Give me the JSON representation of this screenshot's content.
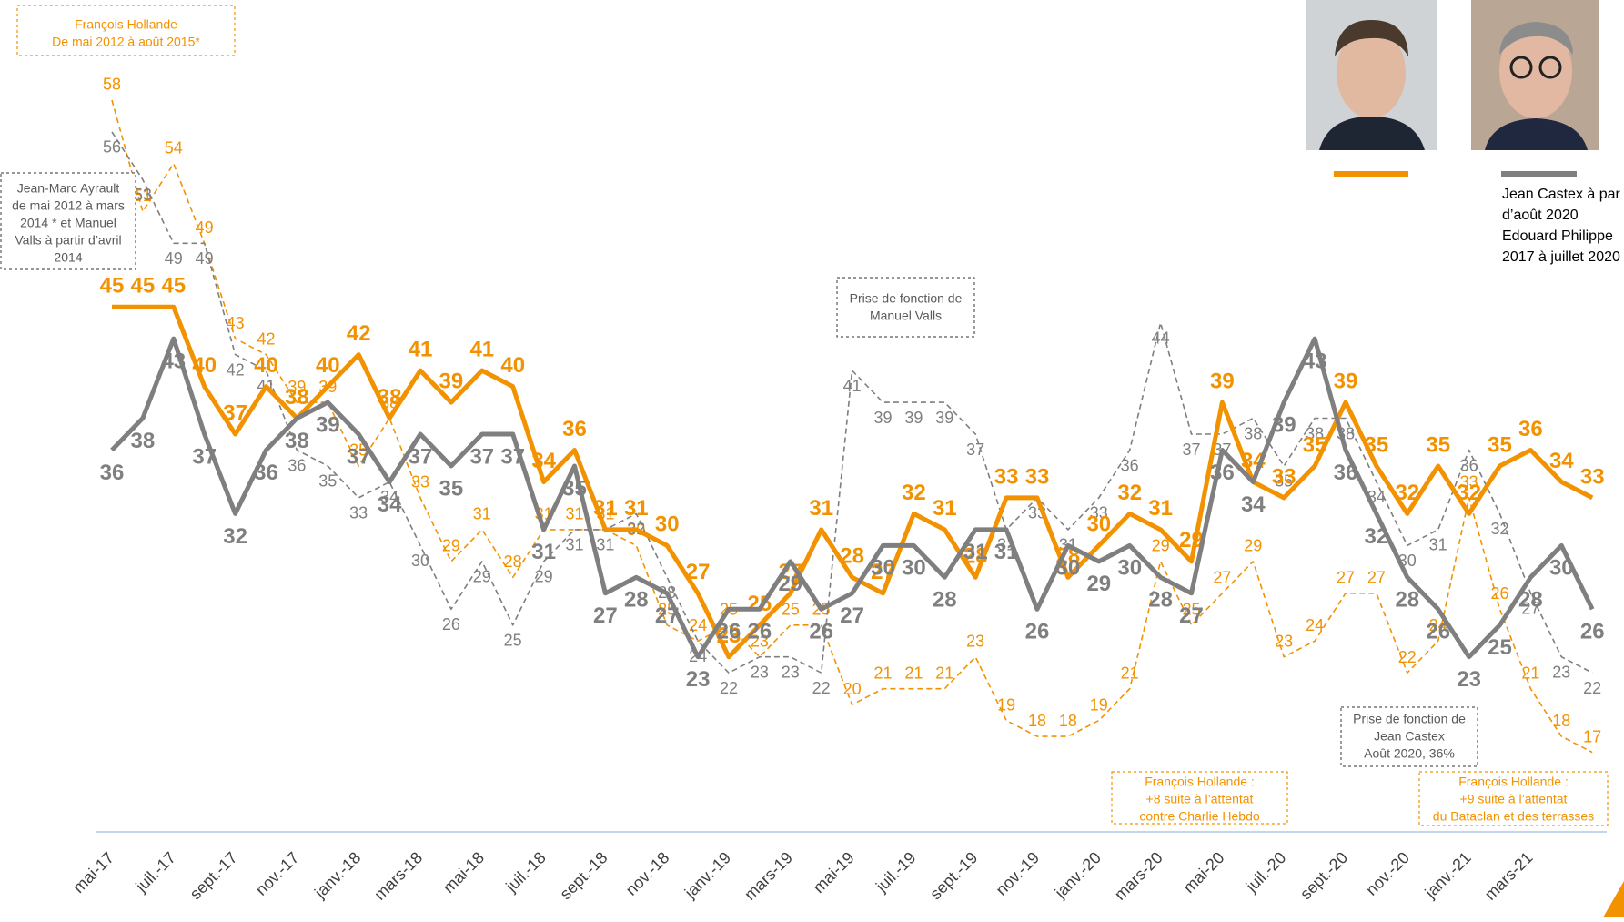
{
  "chart_data": {
    "type": "line",
    "categories": [
      "mai-17",
      null,
      "juil.-17",
      null,
      "sept.-17",
      null,
      "nov.-17",
      null,
      "janv.-18",
      null,
      "mars-18",
      null,
      "mai-18",
      null,
      "juil.-18",
      null,
      "sept.-18",
      null,
      "nov.-18",
      null,
      "janv.-19",
      null,
      "mars-19",
      null,
      "mai-19",
      null,
      "juil.-19",
      null,
      "sept.-19",
      null,
      "nov.-19",
      null,
      "janv.-20",
      null,
      "mars-20",
      null,
      "mai-20",
      null,
      "juil.-20",
      null,
      "sept.-20",
      null,
      "nov.-20",
      null,
      "janv.-21",
      null,
      "mars-21",
      null,
      null
    ],
    "ylim": [
      12,
      60
    ],
    "series": [
      {
        "color": "#f39200",
        "dashed": true,
        "values": [
          58,
          51,
          54,
          49,
          43,
          42,
          39,
          39,
          35,
          38,
          33,
          29,
          31,
          28,
          31,
          31,
          31,
          30,
          25,
          24,
          25,
          23,
          25,
          25,
          20,
          21,
          21,
          21,
          23,
          19,
          18,
          18,
          19,
          21,
          29,
          25,
          27,
          29,
          23,
          24,
          27,
          27,
          22,
          24,
          33,
          26,
          21,
          18,
          17
        ]
      },
      {
        "color": "#7f7f7f",
        "dashed": true,
        "values": [
          56,
          53,
          49,
          49,
          42,
          41,
          36,
          35,
          33,
          34,
          30,
          26,
          29,
          25,
          29,
          31,
          31,
          32,
          28,
          24,
          22,
          23,
          23,
          22,
          41,
          39,
          39,
          39,
          37,
          31,
          33,
          31,
          33,
          36,
          44,
          37,
          37,
          38,
          35,
          38,
          38,
          34,
          30,
          31,
          36,
          32,
          27,
          23,
          22
        ]
      },
      {
        "color": "#f39200",
        "dashed": false,
        "values": [
          45,
          45,
          45,
          40,
          37,
          40,
          38,
          40,
          42,
          38,
          41,
          39,
          41,
          40,
          34,
          36,
          31,
          31,
          30,
          27,
          23,
          25,
          27,
          31,
          28,
          27,
          32,
          31,
          28,
          33,
          33,
          28,
          30,
          32,
          31,
          29,
          39,
          34,
          33,
          35,
          39,
          35,
          32,
          35,
          32,
          35,
          36,
          34,
          33
        ]
      },
      {
        "color": "#7f7f7f",
        "dashed": false,
        "values": [
          36,
          38,
          43,
          37,
          32,
          36,
          38,
          39,
          37,
          34,
          37,
          35,
          37,
          37,
          31,
          35,
          27,
          28,
          27,
          23,
          26,
          26,
          29,
          26,
          27,
          30,
          30,
          28,
          31,
          31,
          26,
          30,
          29,
          30,
          28,
          27,
          36,
          34,
          39,
          43,
          36,
          32,
          28,
          26,
          23,
          25,
          28,
          30,
          26
        ]
      }
    ],
    "annotations": [
      {
        "color": "#f39200",
        "lines": [
          "François Hollande",
          "De mai 2012 à août 2015*"
        ]
      },
      {
        "color": "#595959",
        "lines": [
          "Jean-Marc Ayrault",
          "de mai 2012 à mars",
          "2014 * et Manuel",
          "Valls à partir d’avril",
          "2014"
        ]
      },
      {
        "color": "#595959",
        "lines": [
          "Prise de fonction de",
          "Manuel Valls"
        ]
      },
      {
        "color": "#f39200",
        "lines": [
          "François Hollande :",
          "+8 suite à l’attentat",
          "contre Charlie Hebdo"
        ]
      },
      {
        "color": "#595959",
        "lines": [
          "Prise de fonction de",
          "Jean Castex",
          "Août 2020, 36%"
        ]
      },
      {
        "color": "#f39200",
        "lines": [
          "François Hollande :",
          "+9 suite à l’attentat",
          "du Bataclan et des terrasses"
        ]
      }
    ],
    "legend_text": [
      "Jean  Castex à par",
      "d’août 2020",
      "Edouard Philippe",
      "2017 à juillet 2020"
    ]
  }
}
